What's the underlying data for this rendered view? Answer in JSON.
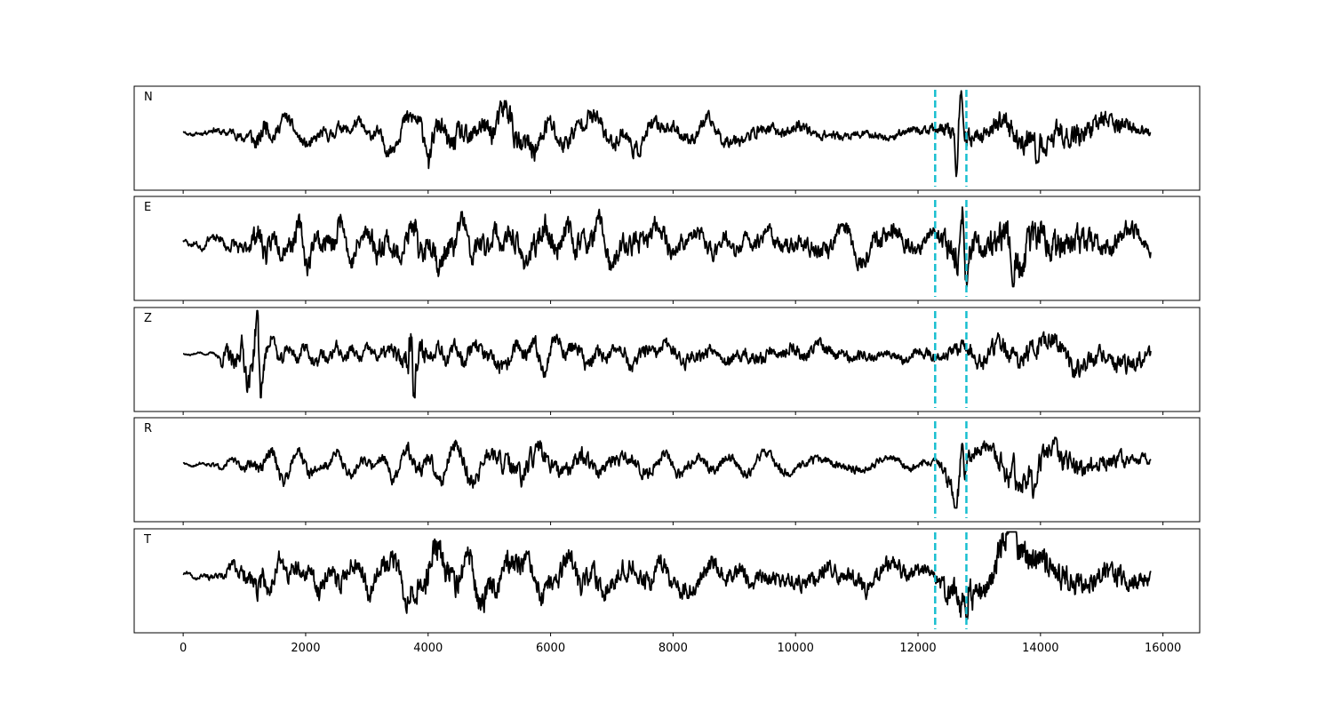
{
  "chart_data": {
    "type": "line",
    "panels": [
      {
        "label": "N",
        "seed": 11,
        "amp_profile": [
          [
            0,
            0.04
          ],
          [
            900,
            0.2
          ],
          [
            1300,
            0.45
          ],
          [
            1600,
            0.25
          ],
          [
            3000,
            0.25
          ],
          [
            3900,
            0.45
          ],
          [
            5000,
            0.55
          ],
          [
            5400,
            0.6
          ],
          [
            6000,
            0.45
          ],
          [
            8000,
            0.3
          ],
          [
            10000,
            0.25
          ],
          [
            11500,
            0.15
          ],
          [
            12300,
            0.2
          ],
          [
            12650,
            0.55
          ],
          [
            13000,
            0.3
          ],
          [
            13500,
            0.55
          ],
          [
            14500,
            0.6
          ],
          [
            15200,
            0.4
          ],
          [
            15800,
            0.2
          ]
        ],
        "spikes": [
          [
            12630,
            -1.0
          ],
          [
            12700,
            0.85
          ],
          [
            13950,
            -0.6
          ],
          [
            4020,
            -0.55
          ]
        ]
      },
      {
        "label": "E",
        "seed": 23,
        "amp_profile": [
          [
            0,
            0.08
          ],
          [
            700,
            0.2
          ],
          [
            1300,
            0.55
          ],
          [
            1600,
            0.45
          ],
          [
            3000,
            0.5
          ],
          [
            3900,
            0.6
          ],
          [
            5000,
            0.5
          ],
          [
            6000,
            0.55
          ],
          [
            8000,
            0.4
          ],
          [
            10000,
            0.35
          ],
          [
            11500,
            0.45
          ],
          [
            12300,
            0.3
          ],
          [
            12700,
            0.85
          ],
          [
            13000,
            0.55
          ],
          [
            13500,
            0.8
          ],
          [
            14500,
            0.65
          ],
          [
            15800,
            0.35
          ]
        ],
        "spikes": [
          [
            12720,
            0.95
          ],
          [
            12800,
            -0.9
          ],
          [
            13550,
            -0.85
          ],
          [
            3850,
            -0.75
          ]
        ]
      },
      {
        "label": "Z",
        "seed": 37,
        "amp_profile": [
          [
            0,
            0.03
          ],
          [
            500,
            0.05
          ],
          [
            700,
            0.4
          ],
          [
            1250,
            0.7
          ],
          [
            1400,
            0.3
          ],
          [
            3000,
            0.25
          ],
          [
            3600,
            0.4
          ],
          [
            3700,
            0.95
          ],
          [
            4000,
            0.35
          ],
          [
            6000,
            0.35
          ],
          [
            8000,
            0.3
          ],
          [
            10000,
            0.3
          ],
          [
            11500,
            0.2
          ],
          [
            12300,
            0.25
          ],
          [
            13000,
            0.4
          ],
          [
            14500,
            0.5
          ],
          [
            15800,
            0.35
          ]
        ],
        "spikes": [
          [
            3730,
            1.0
          ],
          [
            3750,
            -0.75
          ],
          [
            1260,
            -0.85
          ],
          [
            1210,
            0.6
          ]
        ]
      },
      {
        "label": "R",
        "seed": 51,
        "amp_profile": [
          [
            0,
            0.04
          ],
          [
            900,
            0.15
          ],
          [
            1300,
            0.3
          ],
          [
            3000,
            0.2
          ],
          [
            3900,
            0.35
          ],
          [
            5000,
            0.4
          ],
          [
            5400,
            0.5
          ],
          [
            6000,
            0.4
          ],
          [
            8000,
            0.25
          ],
          [
            10000,
            0.2
          ],
          [
            11500,
            0.15
          ],
          [
            12300,
            0.2
          ],
          [
            12650,
            0.6
          ],
          [
            13000,
            0.3
          ],
          [
            13500,
            0.5
          ],
          [
            14500,
            0.5
          ],
          [
            15800,
            0.2
          ]
        ],
        "spikes": [
          [
            12620,
            -1.0
          ],
          [
            12720,
            0.85
          ],
          [
            13900,
            -0.65
          ],
          [
            13550,
            0.55
          ]
        ]
      },
      {
        "label": "T",
        "seed": 67,
        "amp_profile": [
          [
            0,
            0.05
          ],
          [
            600,
            0.15
          ],
          [
            1300,
            0.55
          ],
          [
            1600,
            0.4
          ],
          [
            3000,
            0.45
          ],
          [
            3900,
            0.65
          ],
          [
            5000,
            0.55
          ],
          [
            6000,
            0.5
          ],
          [
            8000,
            0.4
          ],
          [
            10000,
            0.35
          ],
          [
            11500,
            0.4
          ],
          [
            12300,
            0.3
          ],
          [
            12750,
            0.85
          ],
          [
            13000,
            0.45
          ],
          [
            13500,
            0.8
          ],
          [
            14500,
            0.6
          ],
          [
            15800,
            0.35
          ]
        ],
        "spikes": [
          [
            12800,
            -1.0
          ],
          [
            12830,
            0.8
          ],
          [
            13530,
            0.75
          ],
          [
            1300,
            0.65
          ]
        ]
      }
    ],
    "x_range": [
      0,
      15800
    ],
    "xlim": [
      -800,
      16600
    ],
    "x_ticks": [
      0,
      2000,
      4000,
      6000,
      8000,
      10000,
      12000,
      14000,
      16000
    ],
    "x_tick_labels": [
      "0",
      "2000",
      "4000",
      "6000",
      "8000",
      "10000",
      "12000",
      "14000",
      "16000"
    ],
    "vertical_markers": [
      12280,
      12790
    ],
    "marker_color": "#17becf",
    "line_color": "#000000",
    "y_ticks_shown": false,
    "grid": false,
    "xlabel": "",
    "ylabel": "",
    "title": ""
  }
}
